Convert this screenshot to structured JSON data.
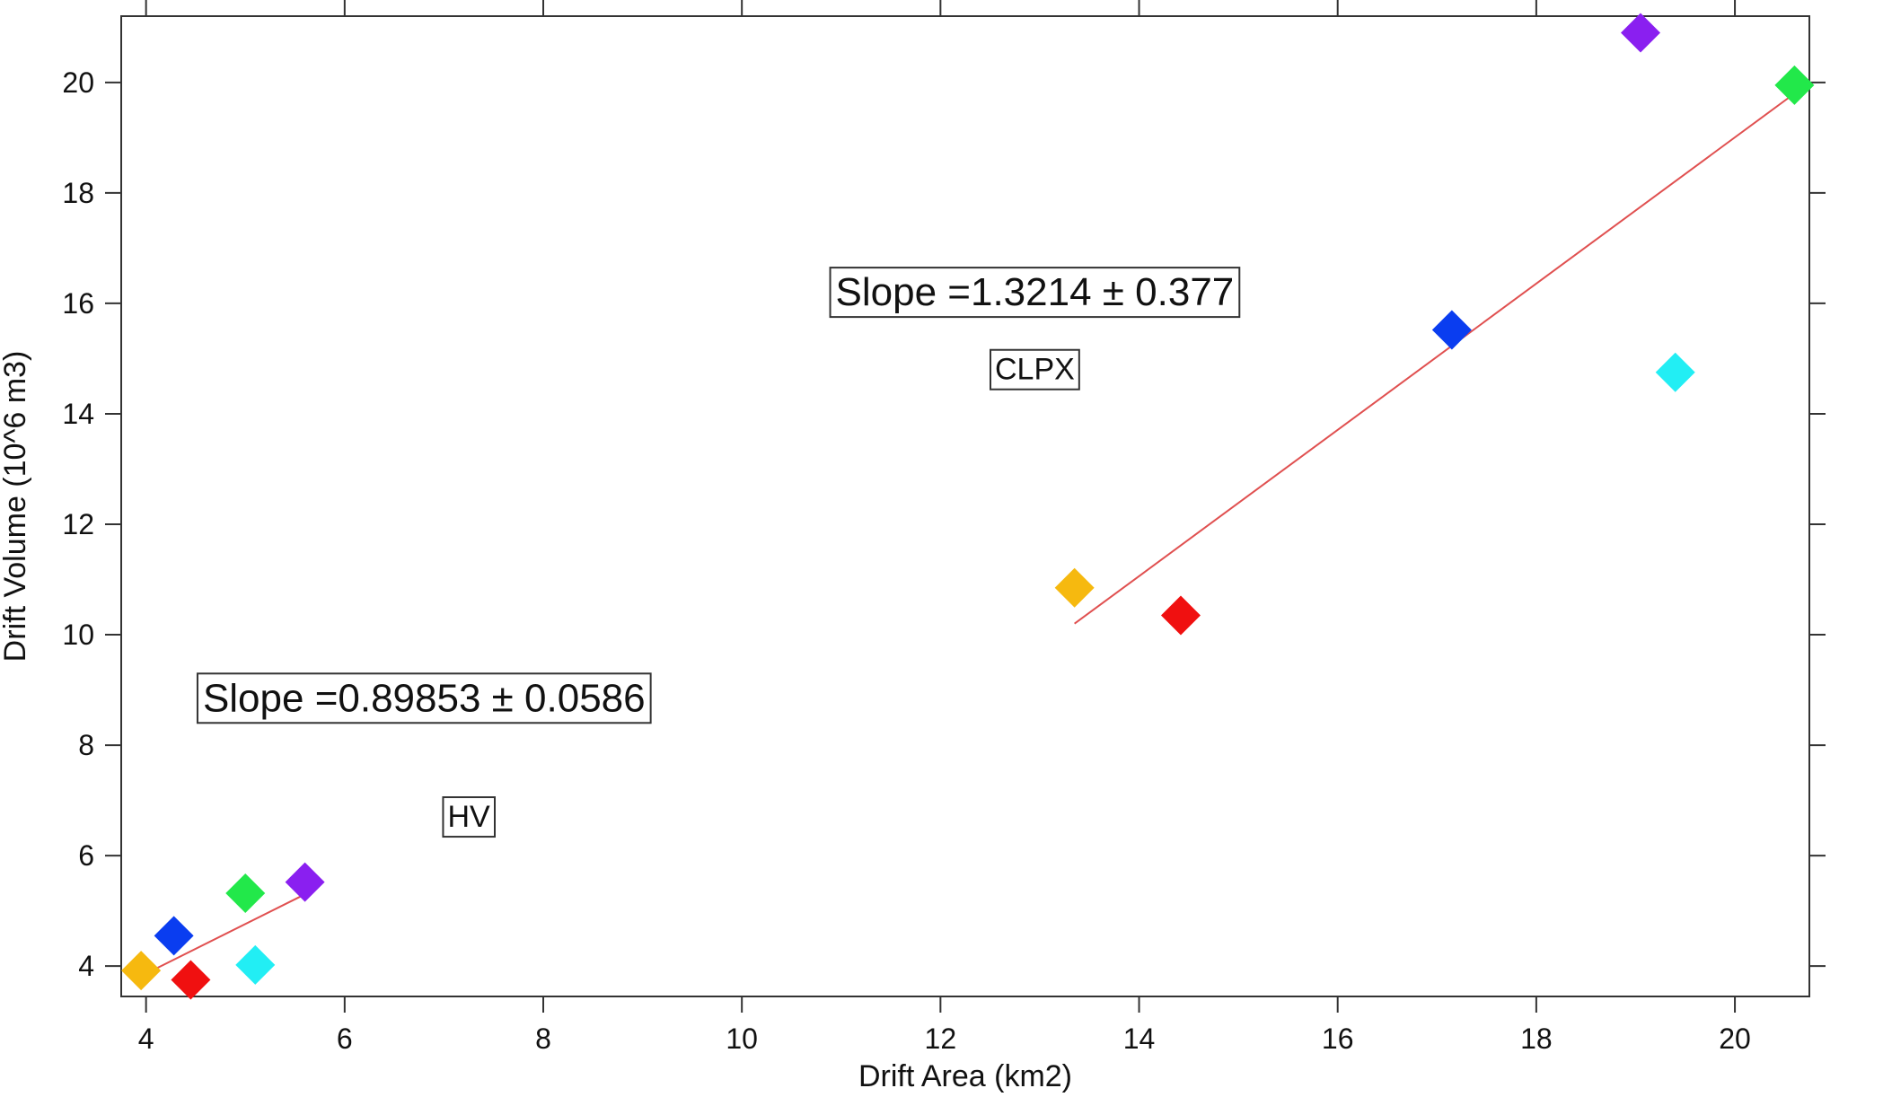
{
  "chart_data": {
    "type": "scatter",
    "xlabel": "Drift Area (km2)",
    "ylabel": "Drift Volume (10^6 m3)",
    "xlim": [
      3.75,
      20.75
    ],
    "ylim": [
      3.45,
      21.2
    ],
    "x_ticks": [
      4,
      6,
      8,
      10,
      12,
      14,
      16,
      18,
      20
    ],
    "y_ticks": [
      4,
      6,
      8,
      10,
      12,
      14,
      16,
      18,
      20
    ],
    "grid": false,
    "points": [
      {
        "group": "HV",
        "x": 3.95,
        "y": 3.92,
        "color": "#f6b90f"
      },
      {
        "group": "HV",
        "x": 4.45,
        "y": 3.75,
        "color": "#f01010"
      },
      {
        "group": "HV",
        "x": 4.28,
        "y": 4.55,
        "color": "#0a3df0"
      },
      {
        "group": "HV",
        "x": 5.0,
        "y": 5.32,
        "color": "#22e84a"
      },
      {
        "group": "HV",
        "x": 5.1,
        "y": 4.02,
        "color": "#22eef4"
      },
      {
        "group": "HV",
        "x": 5.6,
        "y": 5.52,
        "color": "#8a1ff0"
      },
      {
        "group": "CLPX",
        "x": 13.35,
        "y": 10.85,
        "color": "#f6b90f"
      },
      {
        "group": "CLPX",
        "x": 14.42,
        "y": 10.35,
        "color": "#f01010"
      },
      {
        "group": "CLPX",
        "x": 17.15,
        "y": 15.52,
        "color": "#0a3df0"
      },
      {
        "group": "CLPX",
        "x": 19.05,
        "y": 20.9,
        "color": "#8a1ff0"
      },
      {
        "group": "CLPX",
        "x": 19.4,
        "y": 14.75,
        "color": "#22eef4"
      },
      {
        "group": "CLPX",
        "x": 20.6,
        "y": 19.95,
        "color": "#22e84a"
      }
    ],
    "fit_lines": [
      {
        "group": "HV",
        "x": [
          3.95,
          5.6
        ],
        "y": [
          3.82,
          5.3
        ],
        "color": "#e05050"
      },
      {
        "group": "CLPX",
        "x": [
          13.35,
          20.6
        ],
        "y": [
          10.2,
          19.8
        ],
        "color": "#e05050"
      }
    ],
    "annotations": [
      {
        "text": "Slope =1.3214 ± 0.377",
        "x": 12.95,
        "y": 16.2,
        "size": "large"
      },
      {
        "text": "CLPX",
        "x": 12.95,
        "y": 14.8,
        "size": "small"
      },
      {
        "text": "Slope =0.89853 ± 0.0586",
        "x": 6.8,
        "y": 8.85,
        "size": "large"
      },
      {
        "text": "HV",
        "x": 7.25,
        "y": 6.7,
        "size": "small"
      }
    ]
  }
}
